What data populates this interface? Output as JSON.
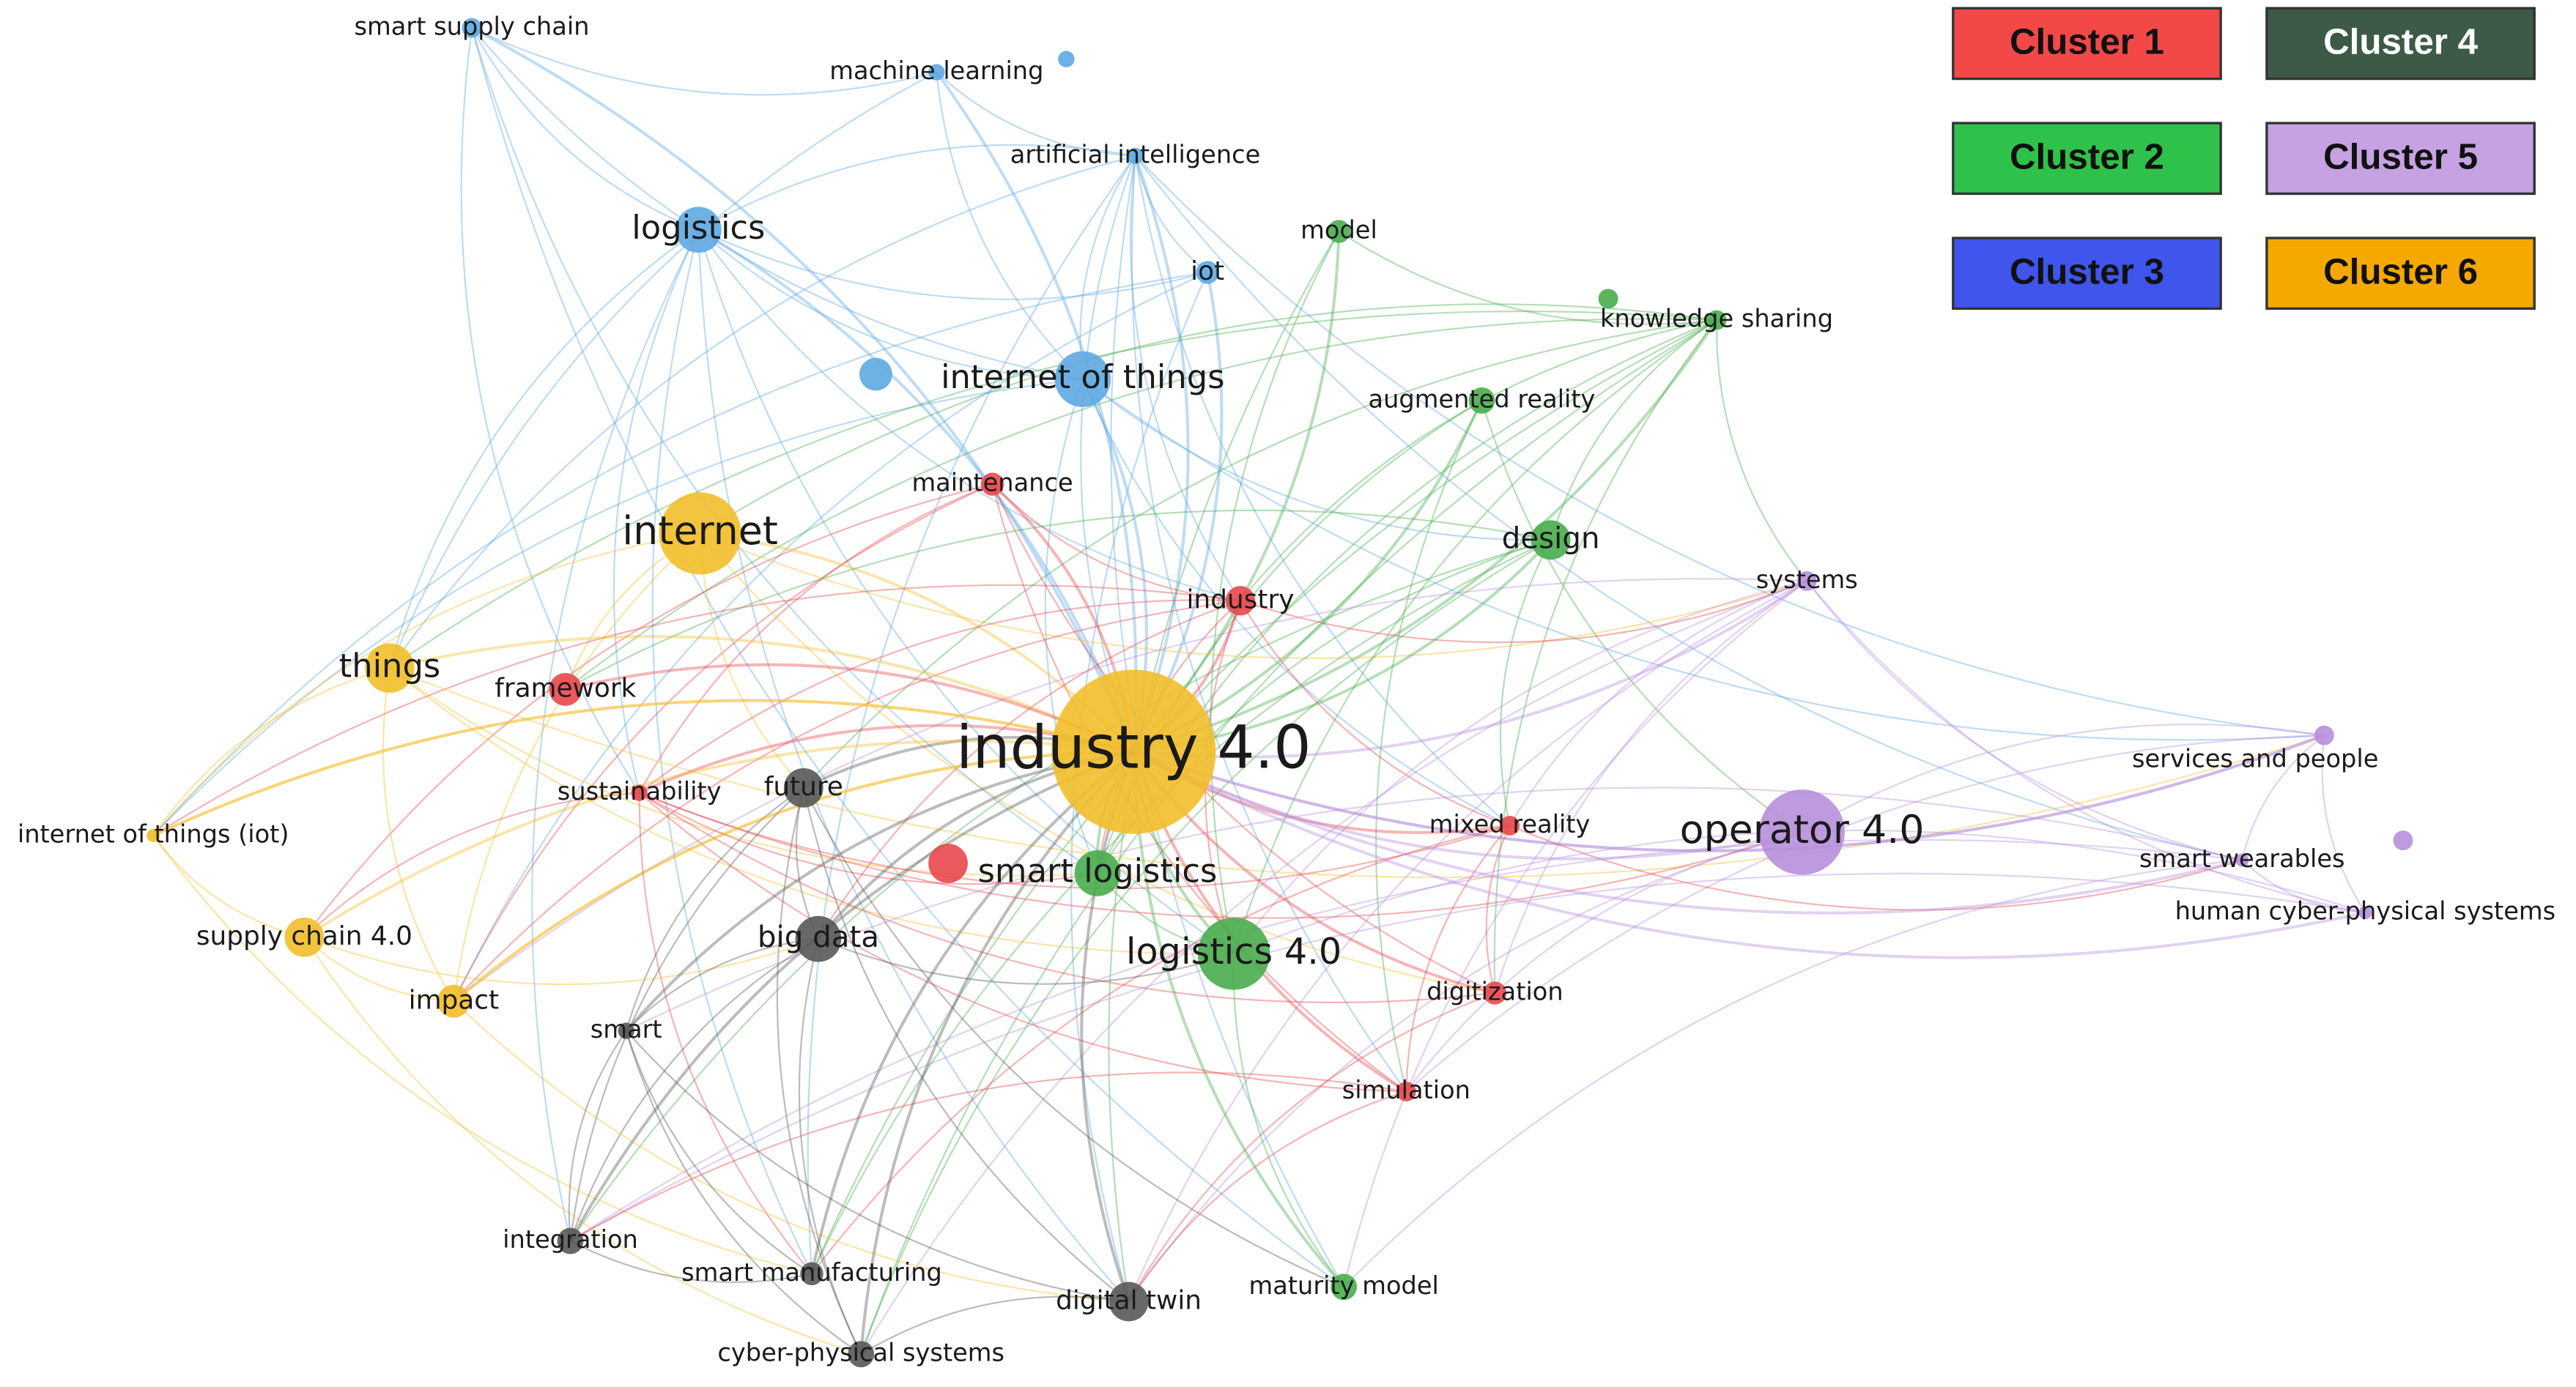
{
  "legend": [
    {
      "label": "Cluster 1",
      "color": "#f24848"
    },
    {
      "label": "Cluster 2",
      "color": "#2fc24a"
    },
    {
      "label": "Cluster 3",
      "color": "#3f55ec"
    },
    {
      "label": "Cluster 4",
      "color": "#3d5a47"
    },
    {
      "label": "Cluster 5",
      "color": "#c6a2e2"
    },
    {
      "label": "Cluster 6",
      "color": "#f4a800"
    }
  ],
  "nodes": [
    {
      "label": "smart supply chain"
    },
    {
      "label": "machine learning"
    },
    {
      "label": "artificial intelligence"
    },
    {
      "label": "logistics"
    },
    {
      "label": "model"
    },
    {
      "label": "iot"
    },
    {
      "label": "knowledge sharing"
    },
    {
      "label": "internet of things"
    },
    {
      "label": "augmented reality"
    },
    {
      "label": "maintenance"
    },
    {
      "label": "internet"
    },
    {
      "label": "design"
    },
    {
      "label": "industry"
    },
    {
      "label": "systems"
    },
    {
      "label": "things"
    },
    {
      "label": "framework"
    },
    {
      "label": "industry 4.0"
    },
    {
      "label": "services and people"
    },
    {
      "label": "sustainability"
    },
    {
      "label": "future"
    },
    {
      "label": "internet of things (iot)"
    },
    {
      "label": "mixed reality"
    },
    {
      "label": "operator 4.0"
    },
    {
      "label": "smart logistics"
    },
    {
      "label": "smart wearables"
    },
    {
      "label": "human cyber-physical systems"
    },
    {
      "label": "supply chain 4.0"
    },
    {
      "label": "big data"
    },
    {
      "label": "logistics 4.0"
    },
    {
      "label": "impact"
    },
    {
      "label": "digitization"
    },
    {
      "label": "smart"
    },
    {
      "label": "simulation"
    },
    {
      "label": "integration"
    },
    {
      "label": "smart manufacturing"
    },
    {
      "label": "maturity model"
    },
    {
      "label": "digital twin"
    },
    {
      "label": "cyber-physical systems"
    }
  ]
}
